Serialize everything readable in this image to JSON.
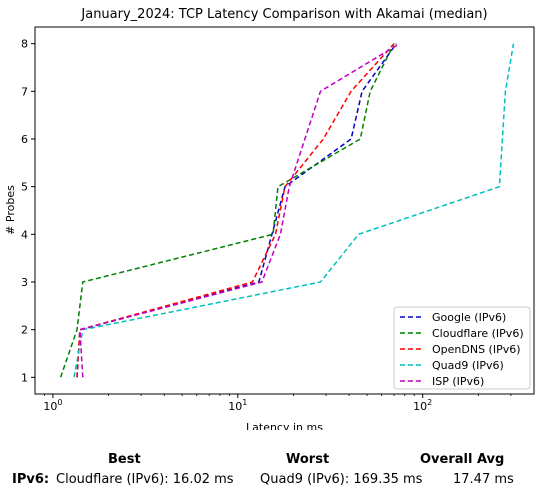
{
  "chart_data": {
    "type": "line",
    "title": "January_2024: TCP Latency Comparison with Akamai (median)",
    "xlabel": "Latency in ms",
    "ylabel": "# Probes",
    "xscale": "log",
    "xlim": [
      0.8,
      400
    ],
    "ylim": [
      0.65,
      8.35
    ],
    "xticks": [
      {
        "value": 1,
        "label": "10^0"
      },
      {
        "value": 10,
        "label": "10^1"
      },
      {
        "value": 100,
        "label": "10^2"
      }
    ],
    "yticks": [
      1,
      2,
      3,
      4,
      5,
      6,
      7,
      8
    ],
    "legend_position": "bottom-right",
    "grid": false,
    "series": [
      {
        "name": "Google (IPv6)",
        "color": "#0000cc",
        "x": [
          1.35,
          1.4,
          13,
          18,
          41,
          47,
          72
        ],
        "y": [
          1,
          2,
          3,
          5,
          6,
          7,
          8
        ]
      },
      {
        "name": "Cloudflare (IPv6)",
        "color": "#008000",
        "x": [
          1.1,
          1.35,
          1.45,
          15.5,
          16.5,
          46,
          52,
          70
        ],
        "y": [
          1,
          2,
          3,
          4,
          5,
          6,
          7,
          8
        ]
      },
      {
        "name": "OpenDNS (IPv6)",
        "color": "#ff0000",
        "x": [
          1.35,
          1.4,
          12,
          16,
          18,
          29,
          41,
          70
        ],
        "y": [
          1,
          2,
          3,
          4,
          5,
          6,
          7,
          8
        ]
      },
      {
        "name": "Quad9 (IPv6)",
        "color": "#00bfbf",
        "x": [
          1.3,
          1.45,
          28,
          45,
          260,
          280,
          310
        ],
        "y": [
          1,
          2,
          3,
          4,
          5,
          7,
          8
        ]
      },
      {
        "name": "ISP (IPv6)",
        "color": "#bf00bf",
        "x": [
          1.45,
          1.4,
          13.5,
          17,
          19,
          28,
          75
        ],
        "y": [
          1,
          2,
          3,
          4,
          5,
          7,
          8
        ]
      }
    ]
  },
  "stats": {
    "headers": {
      "best": "Best",
      "worst": "Worst",
      "overall_avg": "Overall Avg"
    },
    "row": {
      "label": "IPv6:",
      "best": "Cloudflare (IPv6): 16.02 ms",
      "worst": "Quad9 (IPv6): 169.35 ms",
      "overall_avg": "17.47 ms"
    }
  }
}
